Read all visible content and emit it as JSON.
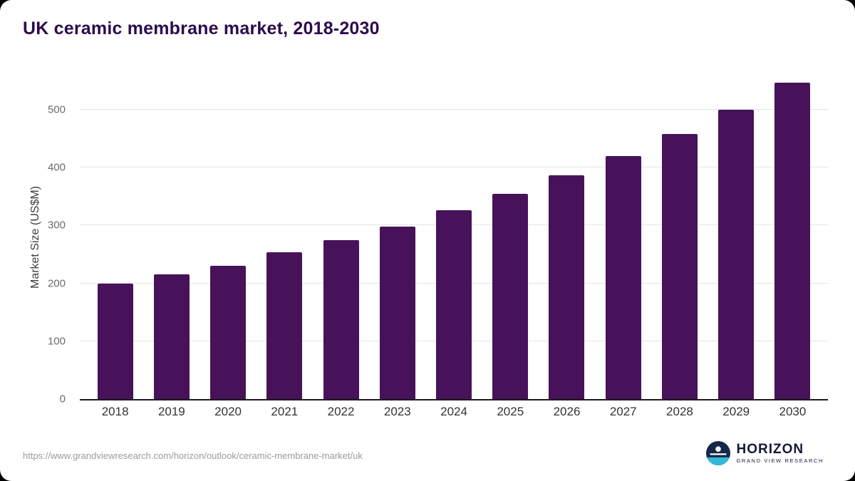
{
  "page": {
    "title": "UK ceramic membrane market, 2018-2030"
  },
  "chart_data": {
    "type": "bar",
    "title": "UK ceramic membrane market, 2018-2030",
    "categories": [
      "2018",
      "2019",
      "2020",
      "2021",
      "2022",
      "2023",
      "2024",
      "2025",
      "2026",
      "2027",
      "2028",
      "2029",
      "2030"
    ],
    "values": [
      200,
      215,
      230,
      253,
      274,
      298,
      326,
      355,
      387,
      420,
      458,
      500,
      546
    ],
    "xlabel": "",
    "ylabel": "Market Size (US$M)",
    "ylim": [
      0,
      560
    ],
    "yticks": [
      0,
      100,
      200,
      300,
      400,
      500
    ],
    "bar_color": "#471259",
    "grid": true,
    "legend": false
  },
  "footer": {
    "url": "https://www.grandviewresearch.com/horizon/outlook/ceramic-membrane-market/uk",
    "logo": {
      "brand": "HORIZON",
      "sub": "GRAND VIEW RESEARCH"
    }
  },
  "colors": {
    "title": "#2d0a4e",
    "bar": "#471259",
    "gridline": "#e4e4e4",
    "axis": "#1a1a1a",
    "tick_text": "#6b6b6b",
    "logo_navy": "#15284a",
    "logo_teal": "#32b9d8"
  }
}
